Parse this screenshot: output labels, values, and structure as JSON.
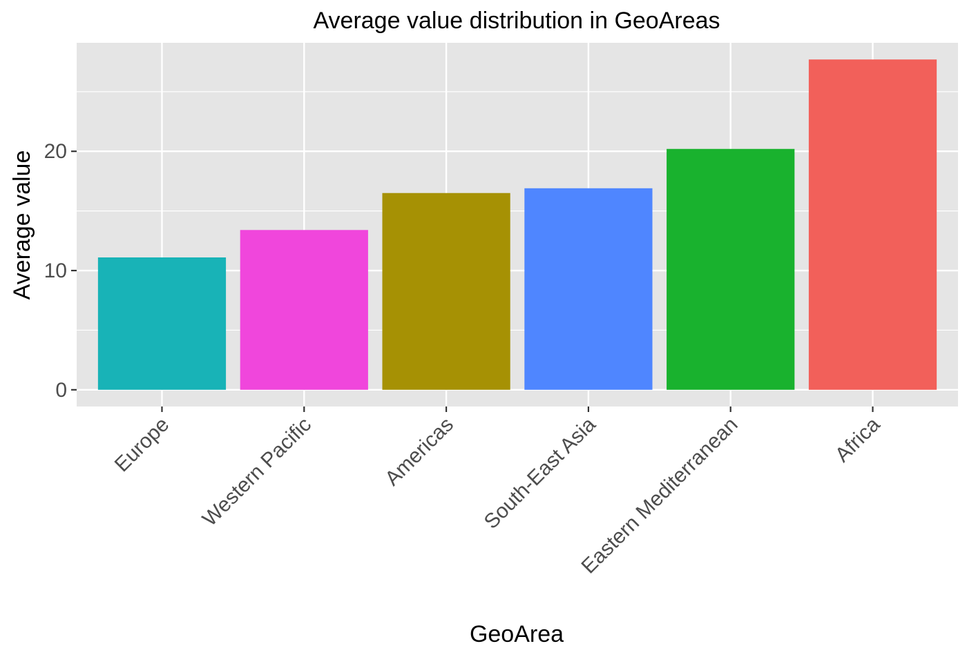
{
  "chart_data": {
    "type": "bar",
    "title": "Average value distribution in GeoAreas",
    "xlabel": "GeoArea",
    "ylabel": "Average value",
    "categories": [
      "Europe",
      "Western Pacific",
      "Americas",
      "South-East Asia",
      "Eastern Mediterranean",
      "Africa"
    ],
    "values": [
      11.1,
      13.4,
      16.5,
      16.9,
      20.2,
      27.7
    ],
    "colors": [
      "#18B3B7",
      "#F046DC",
      "#A69104",
      "#4F86FF",
      "#19B22E",
      "#F2605A"
    ],
    "y_ticks": [
      0,
      10,
      20
    ],
    "y_tick_labels": [
      "0",
      "10",
      "20"
    ],
    "ylim": [
      -1.4,
      29.1
    ],
    "panel_background": "#e5e5e5",
    "grid": true,
    "grid_color": "#ffffff",
    "legend": "none"
  }
}
